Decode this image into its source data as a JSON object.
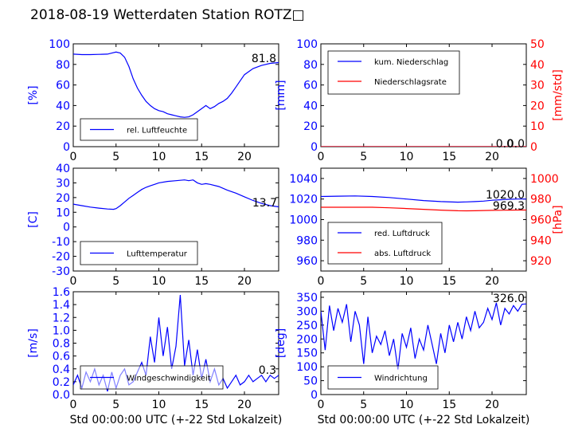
{
  "title": "2018-08-19 Wetterdaten Station ROTZ□",
  "colors": {
    "primary": "#0000ff",
    "secondary": "#ff0000",
    "light": "#8080ff",
    "frame": "#000000"
  },
  "chart_data": [
    {
      "id": "humidity",
      "type": "line",
      "ylabel": "[%]",
      "xlabel": "",
      "xlim": [
        0,
        24
      ],
      "ylim": [
        0,
        100
      ],
      "yticks": [
        0,
        20,
        40,
        60,
        80,
        100
      ],
      "xticks": [
        0,
        5,
        10,
        15,
        20
      ],
      "annotation": "81.8",
      "series": [
        {
          "name": "rel. Luftfeuchte",
          "color": "#0000ff",
          "x": [
            0,
            1,
            2,
            3,
            4,
            4.5,
            5,
            5.5,
            6,
            6.5,
            7,
            7.5,
            8,
            8.5,
            9,
            9.5,
            10,
            10.5,
            11,
            11.5,
            12,
            12.5,
            13,
            13.5,
            14,
            14.5,
            15,
            15.5,
            16,
            16.5,
            17,
            17.5,
            18,
            18.5,
            19,
            19.5,
            20,
            21,
            22,
            23,
            24
          ],
          "y": [
            90,
            89.5,
            89.5,
            89.8,
            90,
            91,
            92,
            91,
            87,
            78,
            66,
            57,
            50,
            44,
            40,
            37,
            35,
            34,
            32,
            31,
            30,
            29,
            28.5,
            29,
            31,
            34,
            37,
            40,
            37,
            39,
            42,
            44,
            47,
            52,
            58,
            64,
            70,
            76,
            79,
            81,
            81.8
          ]
        }
      ],
      "legend": {
        "position": "lower-left",
        "entries": [
          "rel. Luftfeuchte"
        ]
      }
    },
    {
      "id": "precipitation",
      "type": "line",
      "ylabel": "[mm]",
      "y2label": "[mm/std]",
      "xlabel": "",
      "xlim": [
        0,
        24
      ],
      "ylim": [
        0,
        100
      ],
      "y2lim": [
        0,
        50
      ],
      "yticks": [
        0,
        20,
        40,
        60,
        80,
        100
      ],
      "y2ticks": [
        0,
        10,
        20,
        30,
        40,
        50
      ],
      "xticks": [
        0,
        5,
        10,
        15,
        20
      ],
      "annotations": [
        "0.0",
        "0.0"
      ],
      "series": [
        {
          "name": "kum. Niederschlag",
          "axis": "left",
          "color": "#0000ff",
          "x": [
            0,
            24
          ],
          "y": [
            0,
            0
          ]
        },
        {
          "name": "Niederschlagsrate",
          "axis": "right",
          "color": "#ff0000",
          "x": [
            0,
            24
          ],
          "y": [
            0,
            0
          ]
        }
      ],
      "legend": {
        "position": "upper-left",
        "entries": [
          "kum. Niederschlag",
          "Niederschlagsrate"
        ]
      }
    },
    {
      "id": "temperature",
      "type": "line",
      "ylabel": "[C]",
      "xlabel": "",
      "xlim": [
        0,
        24
      ],
      "ylim": [
        -30,
        40
      ],
      "yticks": [
        -30,
        -20,
        -10,
        0,
        10,
        20,
        30,
        40
      ],
      "xticks": [
        0,
        5,
        10,
        15,
        20
      ],
      "annotation": "13.7",
      "series": [
        {
          "name": "Lufttemperatur",
          "color": "#0000ff",
          "x": [
            0,
            1,
            2,
            3,
            4,
            4.7,
            5,
            5.5,
            6,
            6.5,
            7,
            7.5,
            8,
            8.5,
            9,
            9.5,
            10,
            11,
            12,
            13,
            13.5,
            14,
            14.5,
            15,
            15.5,
            16,
            17,
            18,
            19,
            20,
            21,
            22,
            23,
            24
          ],
          "y": [
            15.5,
            14.5,
            13.5,
            12.8,
            12.2,
            12,
            12.5,
            14.5,
            17,
            19.5,
            21.5,
            23.5,
            25.5,
            27,
            28,
            29,
            30,
            31,
            31.5,
            32,
            31.5,
            32,
            30,
            29,
            29.5,
            29,
            27.5,
            25,
            23,
            20.5,
            18,
            16,
            14.5,
            13.7
          ]
        }
      ],
      "legend": {
        "position": "lower-left",
        "entries": [
          "Lufttemperatur"
        ]
      }
    },
    {
      "id": "pressure",
      "type": "line",
      "ylabel": "",
      "y2label": "[hPa]",
      "xlabel": "",
      "xlim": [
        0,
        24
      ],
      "ylim": [
        950,
        1050
      ],
      "y2lim": [
        910,
        1010
      ],
      "yticks": [
        960,
        980,
        1000,
        1020,
        1040
      ],
      "y2ticks": [
        920,
        940,
        960,
        980,
        1000
      ],
      "xticks": [
        0,
        5,
        10,
        15,
        20
      ],
      "annotations": [
        "1020.0",
        "969.3"
      ],
      "series": [
        {
          "name": "red. Luftdruck",
          "axis": "left",
          "color": "#0000ff",
          "x": [
            0,
            2,
            4,
            6,
            8,
            10,
            12,
            14,
            16,
            17,
            18,
            19,
            20,
            21,
            22,
            23,
            24
          ],
          "y": [
            1022.5,
            1022.8,
            1023,
            1022.5,
            1021.5,
            1020,
            1018.5,
            1017.5,
            1017,
            1017.2,
            1017.5,
            1018,
            1018.8,
            1019.3,
            1019.8,
            1020,
            1020
          ]
        },
        {
          "name": "abs. Luftdruck",
          "axis": "right",
          "color": "#ff0000",
          "x": [
            0,
            2,
            4,
            6,
            8,
            10,
            12,
            14,
            16,
            17,
            18,
            19,
            20,
            21,
            22,
            23,
            24
          ],
          "y": [
            972,
            972,
            972,
            972,
            971.5,
            970.8,
            970,
            969.2,
            968.6,
            968.5,
            968.6,
            968.8,
            969,
            969.1,
            969.2,
            969.3,
            969.3
          ]
        }
      ],
      "legend": {
        "position": "lower-left",
        "entries": [
          "red. Luftdruck",
          "abs. Luftdruck"
        ]
      }
    },
    {
      "id": "windspeed",
      "type": "line",
      "ylabel": "[m/s]",
      "xlabel": "Std 00:00:00 UTC (+-22 Std Lokalzeit)",
      "xlim": [
        0,
        24
      ],
      "ylim": [
        0,
        1.6
      ],
      "yticks": [
        0.0,
        0.2,
        0.4,
        0.6,
        0.8,
        1.0,
        1.2,
        1.4,
        1.6
      ],
      "xticks": [
        0,
        5,
        10,
        15,
        20
      ],
      "annotation": "0.3",
      "series": [
        {
          "name": "Windgeschwindigkeit",
          "color": "#0000ff",
          "x": [
            0,
            0.5,
            1,
            1.5,
            2,
            2.5,
            3,
            3.5,
            4,
            4.5,
            5,
            5.5,
            6,
            6.5,
            7,
            7.5,
            8,
            8.5,
            9,
            9.5,
            10,
            10.5,
            11,
            11.5,
            12,
            12.5,
            13,
            13.5,
            14,
            14.5,
            15,
            15.5,
            16,
            16.5,
            17,
            17.5,
            18,
            18.5,
            19,
            19.5,
            20,
            20.5,
            21,
            21.5,
            22,
            22.5,
            23,
            23.5,
            24
          ],
          "y": [
            0.15,
            0.3,
            0.1,
            0.35,
            0.2,
            0.4,
            0.15,
            0.3,
            0.05,
            0.35,
            0.1,
            0.3,
            0.4,
            0.15,
            0.2,
            0.35,
            0.5,
            0.3,
            0.9,
            0.5,
            1.2,
            0.6,
            1.05,
            0.4,
            0.75,
            1.55,
            0.45,
            0.85,
            0.3,
            0.7,
            0.25,
            0.55,
            0.2,
            0.4,
            0.15,
            0.25,
            0.1,
            0.2,
            0.3,
            0.15,
            0.2,
            0.3,
            0.2,
            0.25,
            0.3,
            0.2,
            0.3,
            0.25,
            0.3
          ]
        }
      ],
      "legend": {
        "position": "lower-left",
        "entries": [
          "Windgeschwindigkeit"
        ]
      }
    },
    {
      "id": "winddirection",
      "type": "line",
      "ylabel": "[deg]",
      "xlabel": "Std 00:00:00 UTC (+-22 Std Lokalzeit)",
      "xlim": [
        0,
        24
      ],
      "ylim": [
        0,
        370
      ],
      "yticks": [
        0,
        50,
        100,
        150,
        200,
        250,
        300,
        350
      ],
      "xticks": [
        0,
        5,
        10,
        15,
        20
      ],
      "annotation": "326.0",
      "series": [
        {
          "name": "Windrichtung",
          "color": "#0000ff",
          "x": [
            0,
            0.5,
            1,
            1.5,
            2,
            2.5,
            3,
            3.5,
            4,
            4.5,
            5,
            5.5,
            6,
            6.5,
            7,
            7.5,
            8,
            8.5,
            9,
            9.5,
            10,
            10.5,
            11,
            11.5,
            12,
            12.5,
            13,
            13.5,
            14,
            14.5,
            15,
            15.5,
            16,
            16.5,
            17,
            17.5,
            18,
            18.5,
            19,
            19.5,
            20,
            20.5,
            21,
            21.5,
            22,
            22.5,
            23,
            23.5,
            24
          ],
          "y": [
            300,
            160,
            320,
            230,
            310,
            260,
            325,
            190,
            300,
            250,
            110,
            280,
            150,
            210,
            180,
            230,
            140,
            200,
            90,
            220,
            170,
            240,
            130,
            200,
            160,
            250,
            180,
            110,
            220,
            150,
            250,
            190,
            260,
            200,
            280,
            230,
            300,
            240,
            260,
            310,
            270,
            330,
            250,
            310,
            290,
            320,
            300,
            325,
            326
          ]
        }
      ],
      "legend": {
        "position": "lower-left",
        "entries": [
          "Windrichtung"
        ]
      }
    }
  ]
}
